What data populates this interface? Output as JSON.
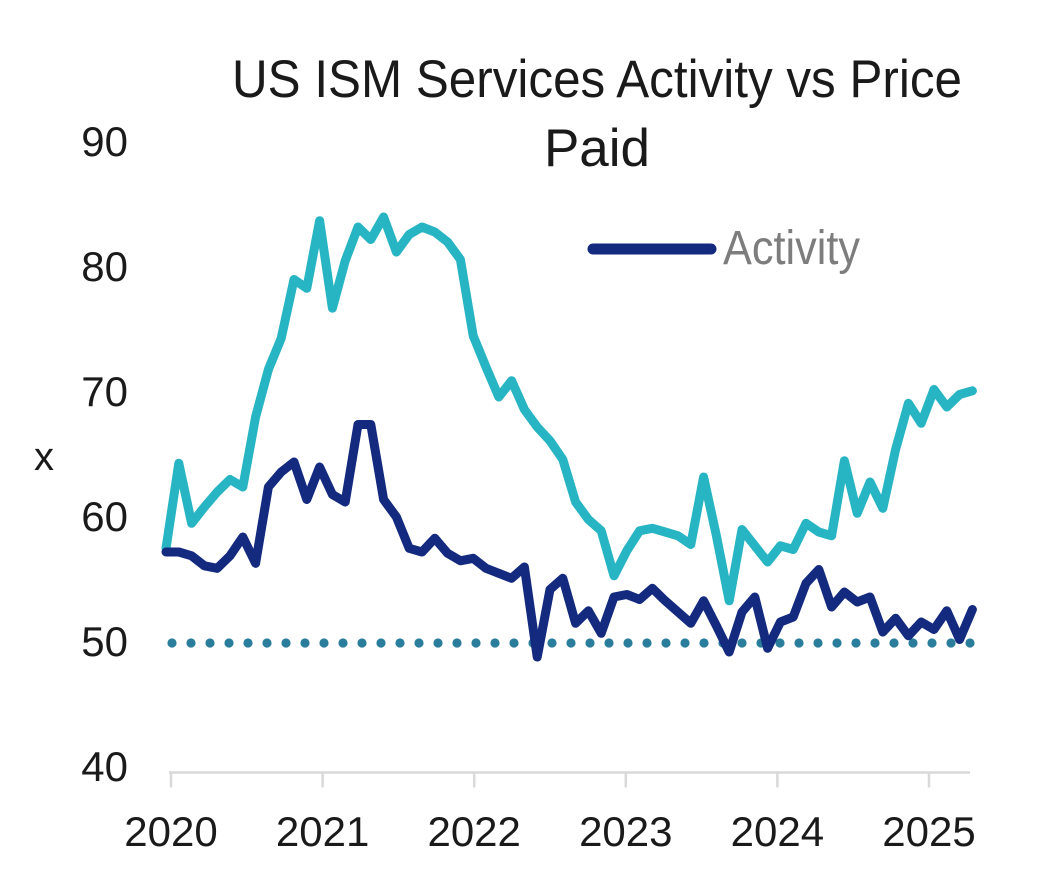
{
  "title": {
    "line1": "US ISM Services Activity vs Price",
    "line2": "Paid"
  },
  "y_axis": {
    "label": "x",
    "tick_labels": [
      "90",
      "80",
      "70",
      "60",
      "50",
      "40"
    ]
  },
  "x_axis": {
    "tick_labels": [
      "2020",
      "2021",
      "2022",
      "2023",
      "2024",
      "2025"
    ]
  },
  "legend": {
    "activity_label": "Activity"
  },
  "colors": {
    "activity": "#132a7e",
    "price_paid": "#27b4c3",
    "reference_dotted": "#2a7d9b",
    "axis_line": "#d9d9d9",
    "text": "#1a1a1a",
    "legend_text": "#7d7d7d"
  },
  "chart_data": {
    "type": "line",
    "title": "US ISM Services Activity vs Price Paid",
    "xlabel": "",
    "ylabel": "x",
    "ylim": [
      40,
      90
    ],
    "x_tick_years": [
      "2020",
      "2021",
      "2022",
      "2023",
      "2024",
      "2025"
    ],
    "points_per_year": 12,
    "reference_line_value": 50,
    "series": [
      {
        "name": "Activity",
        "style": "solid",
        "color": "#132a7e",
        "values": [
          57.2,
          57.2,
          56.9,
          56.1,
          55.9,
          56.9,
          58.4,
          56.3,
          62.4,
          63.6,
          64.4,
          61.4,
          64.0,
          61.8,
          61.2,
          67.4,
          67.4,
          61.4,
          60.0,
          57.5,
          57.2,
          58.3,
          57.1,
          56.5,
          56.7,
          55.9,
          55.5,
          55.1,
          56.0,
          48.8,
          54.2,
          55.1,
          51.5,
          52.5,
          50.7,
          53.6,
          53.8,
          53.4,
          54.3,
          53.3,
          52.4,
          51.5,
          53.3,
          51.3,
          49.2,
          52.4,
          53.6,
          49.5,
          51.6,
          52.0,
          54.7,
          55.8,
          52.8,
          54.0,
          53.2,
          53.6,
          50.8,
          51.9,
          50.5,
          51.6,
          51.0,
          52.5,
          50.2,
          52.6
        ]
      },
      {
        "name": "Price Paid",
        "style": "solid",
        "color": "#27b4c3",
        "values": [
          57.5,
          64.3,
          59.5,
          60.8,
          62.0,
          63.0,
          62.4,
          68.0,
          71.8,
          74.3,
          79.0,
          78.3,
          83.7,
          76.7,
          80.5,
          83.2,
          82.2,
          84.0,
          81.2,
          82.6,
          83.2,
          82.8,
          82.0,
          80.6,
          74.5,
          72.0,
          69.6,
          70.9,
          68.6,
          67.2,
          66.1,
          64.6,
          61.2,
          59.8,
          58.9,
          55.3,
          57.3,
          58.9,
          59.1,
          58.8,
          58.5,
          57.8,
          63.2,
          58.5,
          53.3,
          59.0,
          57.7,
          56.4,
          57.7,
          57.4,
          59.5,
          58.8,
          58.5,
          64.5,
          60.3,
          62.8,
          60.7,
          65.4,
          69.1,
          67.5,
          70.2,
          68.8,
          69.8,
          70.1
        ]
      },
      {
        "name": "Reference 50",
        "style": "dotted",
        "color": "#2a7d9b",
        "value": 50
      }
    ]
  }
}
